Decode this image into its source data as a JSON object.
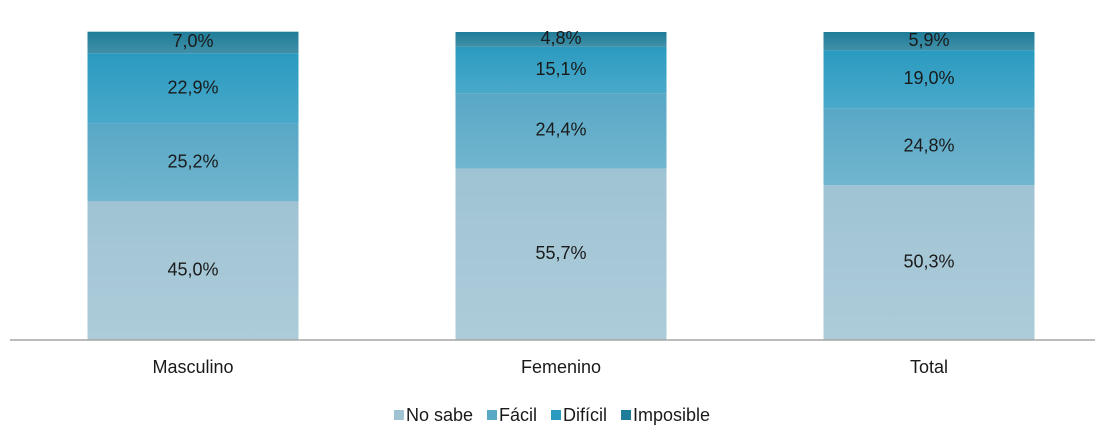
{
  "chart_data": {
    "type": "stacked_bar",
    "categories": [
      "Masculino",
      "Femenino",
      "Total"
    ],
    "series": [
      {
        "name": "No sabe",
        "color": "#9fc3d3",
        "values": [
          45.0,
          55.7,
          50.3
        ],
        "value_labels": [
          "45,0%",
          "55,7%",
          "50,3%"
        ]
      },
      {
        "name": "Fácil",
        "color": "#58a8c6",
        "values": [
          25.2,
          24.4,
          24.8
        ],
        "value_labels": [
          "25,2%",
          "24,4%",
          "24,8%"
        ]
      },
      {
        "name": "Difícil",
        "color": "#2a9ac0",
        "values": [
          22.9,
          15.1,
          19.0
        ],
        "value_labels": [
          "22,9%",
          "15,1%",
          "19,0%"
        ]
      },
      {
        "name": "Imposible",
        "color": "#1f7c98",
        "values": [
          7.0,
          4.8,
          5.9
        ],
        "value_labels": [
          "7,0%",
          "4,8%",
          "5,9%"
        ]
      }
    ],
    "ylim": [
      0,
      100
    ],
    "legend": "bottom"
  }
}
